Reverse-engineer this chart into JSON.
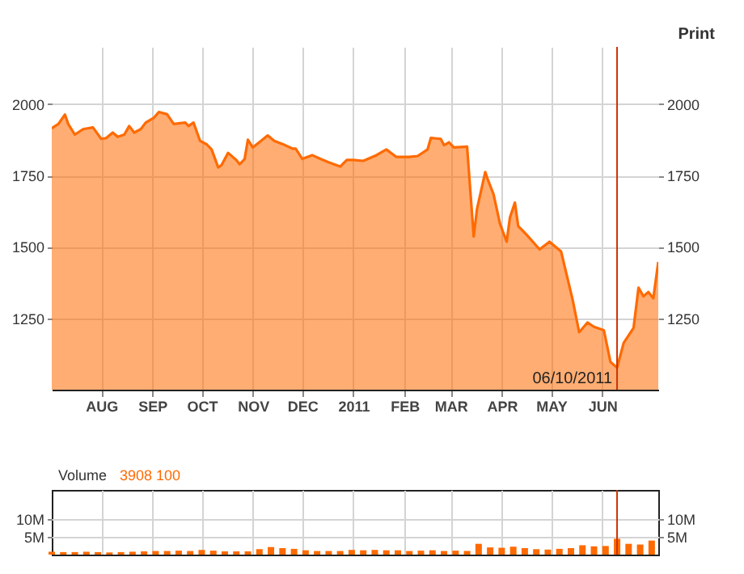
{
  "chart_data": [
    {
      "type": "area",
      "annotations": [
        "Print"
      ],
      "grid": true,
      "tick_labels": "xy",
      "x": [
        "2010-07-02",
        "2010-07-06",
        "2010-07-10",
        "2010-07-12",
        "2010-07-16",
        "2010-07-21",
        "2010-07-27",
        "2010-08-01",
        "2010-08-04",
        "2010-08-08",
        "2010-08-11",
        "2010-08-15",
        "2010-08-18",
        "2010-08-21",
        "2010-08-25",
        "2010-08-28",
        "2010-09-02",
        "2010-09-05",
        "2010-09-10",
        "2010-09-14",
        "2010-09-18",
        "2010-09-21",
        "2010-09-23",
        "2010-09-26",
        "2010-09-30",
        "2010-10-04",
        "2010-10-07",
        "2010-10-11",
        "2010-10-13",
        "2010-10-17",
        "2010-10-22",
        "2010-10-24",
        "2010-10-27",
        "2010-10-29",
        "2010-11-01",
        "2010-11-06",
        "2010-11-10",
        "2010-11-14",
        "2010-11-19",
        "2010-11-25",
        "2010-11-27",
        "2010-12-01",
        "2010-12-07",
        "2010-12-12",
        "2010-12-17",
        "2010-12-24",
        "2010-12-28",
        "2011-01-01",
        "2011-01-07",
        "2011-01-15",
        "2011-01-21",
        "2011-01-27",
        "2011-02-04",
        "2011-02-09",
        "2011-02-15",
        "2011-02-17",
        "2011-02-23",
        "2011-02-25",
        "2011-02-28",
        "2011-03-03",
        "2011-03-11",
        "2011-03-15",
        "2011-03-17",
        "2011-03-22",
        "2011-03-24",
        "2011-03-27",
        "2011-03-31",
        "2011-04-04",
        "2011-04-06",
        "2011-04-09",
        "2011-04-11",
        "2011-04-16",
        "2011-04-24",
        "2011-04-30",
        "2011-05-07",
        "2011-05-14",
        "2011-05-18",
        "2011-05-23",
        "2011-05-27",
        "2011-06-02",
        "2011-06-06",
        "2011-06-10",
        "2011-06-14",
        "2011-06-20",
        "2011-06-23",
        "2011-06-26",
        "2011-06-29",
        "2011-07-02",
        "2011-07-05"
      ],
      "series": [
        {
          "color": "#ff6a00",
          "values": [
            1915,
            1930,
            1963,
            1930,
            1893,
            1912,
            1918,
            1878,
            1881,
            1900,
            1885,
            1893,
            1923,
            1900,
            1912,
            1935,
            1952,
            1972,
            1964,
            1930,
            1933,
            1935,
            1923,
            1935,
            1871,
            1859,
            1841,
            1778,
            1786,
            1829,
            1804,
            1789,
            1807,
            1875,
            1848,
            1871,
            1890,
            1871,
            1860,
            1844,
            1844,
            1808,
            1821,
            1808,
            1796,
            1781,
            1804,
            1804,
            1801,
            1821,
            1841,
            1815,
            1815,
            1818,
            1841,
            1881,
            1878,
            1856,
            1866,
            1848,
            1851,
            1536,
            1632,
            1762,
            1729,
            1685,
            1580,
            1518,
            1603,
            1655,
            1573,
            1543,
            1491,
            1518,
            1484,
            1316,
            1201,
            1235,
            1220,
            1208,
            1097,
            1077,
            1164,
            1216,
            1357,
            1327,
            1342,
            1320,
            1447
          ]
        }
      ],
      "xlim": [
        "2010-07-02",
        "2011-07-05"
      ],
      "xticks": [
        {
          "value": "2010-08-01",
          "label": "AUG"
        },
        {
          "value": "2010-09-01",
          "label": "SEP"
        },
        {
          "value": "2010-10-01",
          "label": "OCT"
        },
        {
          "value": "2010-11-01",
          "label": "NOV"
        },
        {
          "value": "2010-12-01",
          "label": "DEC"
        },
        {
          "value": "2011-01-01",
          "label": "2011"
        },
        {
          "value": "2011-02-01",
          "label": "FEB"
        },
        {
          "value": "2011-03-01",
          "label": "MAR"
        },
        {
          "value": "2011-04-01",
          "label": "APR"
        },
        {
          "value": "2011-05-01",
          "label": "MAY"
        },
        {
          "value": "2011-06-01",
          "label": "JUN"
        }
      ],
      "ylim": [
        1000,
        2200
      ],
      "yticks": [
        1250,
        1500,
        1750,
        2000
      ],
      "y2lim": [
        1000,
        2200
      ],
      "y2ticks": [
        1250,
        1500,
        1750,
        2000
      ],
      "ref_lines": [
        {
          "axis": "x",
          "value": "2011-06-10",
          "label": "06/10/2011",
          "color": "#cc3300"
        }
      ]
    },
    {
      "type": "bar",
      "annotations": [
        "Volume",
        "3908 100"
      ],
      "grid": true,
      "tick_labels": "y",
      "x": [
        "2010-07-02",
        "2010-07-09",
        "2010-07-16",
        "2010-07-23",
        "2010-07-30",
        "2010-08-06",
        "2010-08-13",
        "2010-08-20",
        "2010-08-27",
        "2010-09-03",
        "2010-09-10",
        "2010-09-17",
        "2010-09-24",
        "2010-10-01",
        "2010-10-08",
        "2010-10-15",
        "2010-10-22",
        "2010-10-29",
        "2010-11-05",
        "2010-11-12",
        "2010-11-19",
        "2010-11-26",
        "2010-12-03",
        "2010-12-10",
        "2010-12-17",
        "2010-12-24",
        "2010-12-31",
        "2011-01-07",
        "2011-01-14",
        "2011-01-21",
        "2011-01-28",
        "2011-02-04",
        "2011-02-11",
        "2011-02-18",
        "2011-02-25",
        "2011-03-04",
        "2011-03-11",
        "2011-03-18",
        "2011-03-25",
        "2011-04-01",
        "2011-04-08",
        "2011-04-15",
        "2011-04-22",
        "2011-04-29",
        "2011-05-06",
        "2011-05-13",
        "2011-05-20",
        "2011-05-27",
        "2011-06-03",
        "2011-06-10",
        "2011-06-17",
        "2011-06-24",
        "2011-07-01"
      ],
      "series": [
        {
          "color": "#ff6a00",
          "values": [
            800000,
            700000,
            700000,
            800000,
            700000,
            600000,
            700000,
            800000,
            900000,
            1000000,
            1000000,
            1100000,
            1000000,
            1300000,
            1100000,
            900000,
            900000,
            900000,
            1500000,
            2100000,
            1800000,
            1600000,
            1200000,
            1000000,
            1000000,
            1000000,
            1300000,
            1200000,
            1300000,
            1200000,
            1200000,
            1000000,
            1100000,
            1200000,
            1000000,
            1100000,
            1000000,
            3000000,
            2000000,
            1900000,
            2200000,
            1800000,
            1500000,
            1400000,
            1600000,
            1800000,
            2600000,
            2300000,
            2400000,
            4400000,
            3000000,
            2800000,
            3908100
          ]
        }
      ],
      "xlim": [
        "2010-07-02",
        "2011-07-05"
      ],
      "xticks": [
        {
          "value": "2010-08-01",
          "label": null
        },
        {
          "value": "2010-09-01",
          "label": null
        },
        {
          "value": "2010-10-01",
          "label": null
        },
        {
          "value": "2010-11-01",
          "label": null
        },
        {
          "value": "2010-12-01",
          "label": null
        },
        {
          "value": "2011-01-01",
          "label": null
        },
        {
          "value": "2011-02-01",
          "label": null
        },
        {
          "value": "2011-03-01",
          "label": null
        },
        {
          "value": "2011-04-01",
          "label": null
        },
        {
          "value": "2011-05-01",
          "label": null
        },
        {
          "value": "2011-06-01",
          "label": null
        }
      ],
      "ylim": [
        0,
        18000000
      ],
      "yticks": [
        {
          "value": 5000000,
          "label": "5M"
        },
        {
          "value": 10000000,
          "label": "10M"
        }
      ],
      "y2lim": [
        0,
        18000000
      ],
      "y2ticks": [
        {
          "value": 5000000,
          "label": "5M"
        },
        {
          "value": 10000000,
          "label": "10M"
        }
      ],
      "ref_lines": [
        {
          "axis": "x",
          "value": "2011-06-10",
          "color": "#cc3300"
        }
      ]
    }
  ]
}
